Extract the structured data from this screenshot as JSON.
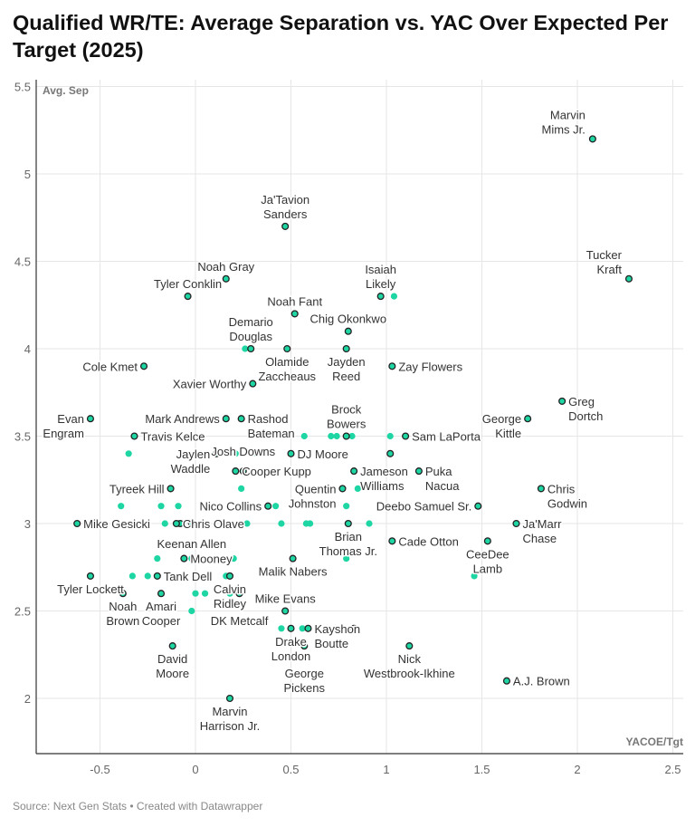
{
  "title": "Qualified WR/TE: Average Separation vs. YAC Over Expected Per Target (2025)",
  "source": "Source: Next Gen Stats • Created with Datawrapper",
  "chart_data": {
    "type": "scatter",
    "title": "Qualified WR/TE: Average Separation vs. YAC Over Expected Per Target (2025)",
    "xlabel": "YACOE/Tgt",
    "ylabel": "Avg. Sep",
    "xlim": [
      -0.85,
      2.55
    ],
    "ylim": [
      1.7,
      5.5
    ],
    "xticks": [
      "-0.5",
      "0",
      "0.5",
      "1",
      "1.5",
      "2",
      "2.5"
    ],
    "yticks": [
      "2",
      "2.5",
      "3",
      "3.5",
      "4",
      "4.5",
      "5",
      "5.5"
    ],
    "grid": true,
    "colors": {
      "point": "#1ed6a3",
      "outline": "#222222"
    },
    "labeled_points": [
      {
        "name": "Marvin Mims Jr.",
        "x": 2.08,
        "y": 5.2,
        "pos": "tl"
      },
      {
        "name": "Ja'Tavion Sanders",
        "x": 0.47,
        "y": 4.7,
        "pos": "t2"
      },
      {
        "name": "Tucker Kraft",
        "x": 2.27,
        "y": 4.4,
        "pos": "tl"
      },
      {
        "name": "Noah Gray",
        "x": 0.16,
        "y": 4.4,
        "pos": "t"
      },
      {
        "name": "Tyler Conklin",
        "x": -0.04,
        "y": 4.3,
        "pos": "t"
      },
      {
        "name": "Isaiah Likely",
        "x": 0.97,
        "y": 4.3,
        "pos": "t2"
      },
      {
        "name": "Noah Fant",
        "x": 0.52,
        "y": 4.2,
        "pos": "t"
      },
      {
        "name": "Chig Okonkwo",
        "x": 0.8,
        "y": 4.1,
        "pos": "t"
      },
      {
        "name": "Demario Douglas",
        "x": 0.29,
        "y": 4.0,
        "pos": "t2"
      },
      {
        "name": "Olamide Zaccheaus",
        "x": 0.48,
        "y": 4.0,
        "pos": "b2"
      },
      {
        "name": "Jayden Reed",
        "x": 0.79,
        "y": 4.0,
        "pos": "b2"
      },
      {
        "name": "Cole Kmet",
        "x": -0.27,
        "y": 3.9,
        "pos": "l"
      },
      {
        "name": "Zay Flowers",
        "x": 1.03,
        "y": 3.9,
        "pos": "r"
      },
      {
        "name": "Xavier Worthy",
        "x": 0.3,
        "y": 3.8,
        "pos": "r2"
      },
      {
        "name": "Greg Dortch",
        "x": 1.92,
        "y": 3.7,
        "pos": "r2"
      },
      {
        "name": "Evan Engram",
        "x": -0.55,
        "y": 3.6,
        "pos": "l2"
      },
      {
        "name": "Mark Andrews",
        "x": 0.16,
        "y": 3.6,
        "pos": "l"
      },
      {
        "name": "Rashod Bateman",
        "x": 0.24,
        "y": 3.6,
        "pos": "r2"
      },
      {
        "name": "George Kittle",
        "x": 1.74,
        "y": 3.6,
        "pos": "l2"
      },
      {
        "name": "Travis Kelce",
        "x": -0.32,
        "y": 3.5,
        "pos": "t2"
      },
      {
        "name": "Brock Bowers",
        "x": 0.79,
        "y": 3.5,
        "pos": "t2"
      },
      {
        "name": "Sam LaPorta",
        "x": 1.1,
        "y": 3.5,
        "pos": "r"
      },
      {
        "name": "Jaylen Waddle",
        "x": 0.11,
        "y": 3.4,
        "pos": "l2"
      },
      {
        "name": "DJ Moore",
        "x": 0.5,
        "y": 3.4,
        "pos": "r"
      },
      {
        "name": "Cooper Kupp",
        "x": 0.21,
        "y": 3.3,
        "pos": "l2"
      },
      {
        "name": "Josh Downs",
        "x": 0.25,
        "y": 3.3,
        "pos": "r"
      },
      {
        "name": "Jameson Williams",
        "x": 0.83,
        "y": 3.3,
        "pos": "r2"
      },
      {
        "name": "Puka Nacua",
        "x": 1.17,
        "y": 3.3,
        "pos": "r2"
      },
      {
        "name": "Tyreek Hill",
        "x": -0.13,
        "y": 3.2,
        "pos": "l"
      },
      {
        "name": "Quentin Johnston",
        "x": 0.77,
        "y": 3.2,
        "pos": "l2"
      },
      {
        "name": "Chris Godwin",
        "x": 1.81,
        "y": 3.2,
        "pos": "r2"
      },
      {
        "name": "Nico Collins",
        "x": 0.38,
        "y": 3.1,
        "pos": "l"
      },
      {
        "name": "Deebo Samuel Sr.",
        "x": 1.48,
        "y": 3.1,
        "pos": "t2"
      },
      {
        "name": "Mike Gesicki",
        "x": -0.62,
        "y": 3.0,
        "pos": "l"
      },
      {
        "name": "Chris Olave",
        "x": -0.1,
        "y": 3.0,
        "pos": "b"
      },
      {
        "name": "Keenan Allen",
        "x": -0.02,
        "y": 3.0,
        "pos": "r"
      },
      {
        "name": "Brian Thomas Jr.",
        "x": 0.8,
        "y": 3.0,
        "pos": "b2"
      },
      {
        "name": "Ja'Marr Chase",
        "x": 1.68,
        "y": 3.0,
        "pos": "r2"
      },
      {
        "name": "Cade Otton",
        "x": 1.03,
        "y": 2.9,
        "pos": "r"
      },
      {
        "name": "CeeDee Lamb",
        "x": 1.53,
        "y": 2.9,
        "pos": "b2"
      },
      {
        "name": "Mooney",
        "x": -0.06,
        "y": 2.8,
        "pos": "t"
      },
      {
        "name": "Malik Nabers",
        "x": 0.51,
        "y": 2.8,
        "pos": "r2"
      },
      {
        "name": "Tyler Lockett",
        "x": -0.55,
        "y": 2.7,
        "pos": "b"
      },
      {
        "name": "Tank Dell",
        "x": -0.2,
        "y": 2.7,
        "pos": "r"
      },
      {
        "name": "Calvin Ridley",
        "x": 0.18,
        "y": 2.7,
        "pos": "r2"
      },
      {
        "name": "Noah Brown",
        "x": -0.38,
        "y": 2.6,
        "pos": "b2"
      },
      {
        "name": "Amari Cooper",
        "x": -0.18,
        "y": 2.6,
        "pos": "b2"
      },
      {
        "name": "DK Metcalf",
        "x": 0.23,
        "y": 2.6,
        "pos": "b"
      },
      {
        "name": "Mike Evans",
        "x": 0.47,
        "y": 2.5,
        "pos": "t"
      },
      {
        "name": "Drake London",
        "x": 0.5,
        "y": 2.4,
        "pos": "b2"
      },
      {
        "name": "Kayshon Boutte",
        "x": 0.59,
        "y": 2.4,
        "pos": "r2"
      },
      {
        "name": "George Pickens",
        "x": 0.57,
        "y": 2.3,
        "pos": "b2"
      },
      {
        "name": "Nick Westbrook-Ikhine",
        "x": 1.12,
        "y": 2.3,
        "pos": "b2"
      },
      {
        "name": "David Moore",
        "x": -0.12,
        "y": 2.3,
        "pos": "b2"
      },
      {
        "name": "A.J. Brown",
        "x": 1.63,
        "y": 2.1,
        "pos": "r"
      },
      {
        "name": "Marvin Harrison Jr.",
        "x": 0.18,
        "y": 2.0,
        "pos": "b2"
      }
    ],
    "unlabeled_outlined_points": [
      {
        "x": 1.02,
        "y": 3.4
      },
      {
        "x": 0.83,
        "y": 2.4
      },
      {
        "x": -0.08,
        "y": 3.0
      }
    ],
    "other_points": [
      {
        "x": 1.04,
        "y": 4.3
      },
      {
        "x": 0.26,
        "y": 4.0
      },
      {
        "x": -0.35,
        "y": 3.4
      },
      {
        "x": 0.57,
        "y": 3.5
      },
      {
        "x": 0.71,
        "y": 3.5
      },
      {
        "x": 0.74,
        "y": 3.5
      },
      {
        "x": 0.82,
        "y": 3.5
      },
      {
        "x": 1.02,
        "y": 3.5
      },
      {
        "x": 0.21,
        "y": 3.4
      },
      {
        "x": 0.32,
        "y": 3.4
      },
      {
        "x": 0.24,
        "y": 3.2
      },
      {
        "x": 0.85,
        "y": 3.2
      },
      {
        "x": -0.39,
        "y": 3.1
      },
      {
        "x": -0.18,
        "y": 3.1
      },
      {
        "x": -0.09,
        "y": 3.1
      },
      {
        "x": 0.42,
        "y": 3.1
      },
      {
        "x": 0.79,
        "y": 3.1
      },
      {
        "x": -0.16,
        "y": 3.0
      },
      {
        "x": 0.27,
        "y": 3.0
      },
      {
        "x": 0.45,
        "y": 3.0
      },
      {
        "x": 0.58,
        "y": 3.0
      },
      {
        "x": 0.6,
        "y": 3.0
      },
      {
        "x": 0.91,
        "y": 3.0
      },
      {
        "x": -0.2,
        "y": 2.8
      },
      {
        "x": -0.02,
        "y": 2.8
      },
      {
        "x": 0.2,
        "y": 2.8
      },
      {
        "x": 0.79,
        "y": 2.8
      },
      {
        "x": -0.33,
        "y": 2.7
      },
      {
        "x": -0.25,
        "y": 2.7
      },
      {
        "x": 0.16,
        "y": 2.7
      },
      {
        "x": 1.46,
        "y": 2.7
      },
      {
        "x": 0.0,
        "y": 2.6
      },
      {
        "x": 0.05,
        "y": 2.6
      },
      {
        "x": 0.18,
        "y": 2.6
      },
      {
        "x": -0.02,
        "y": 2.5
      },
      {
        "x": 0.45,
        "y": 2.4
      },
      {
        "x": 0.56,
        "y": 2.4
      }
    ]
  }
}
